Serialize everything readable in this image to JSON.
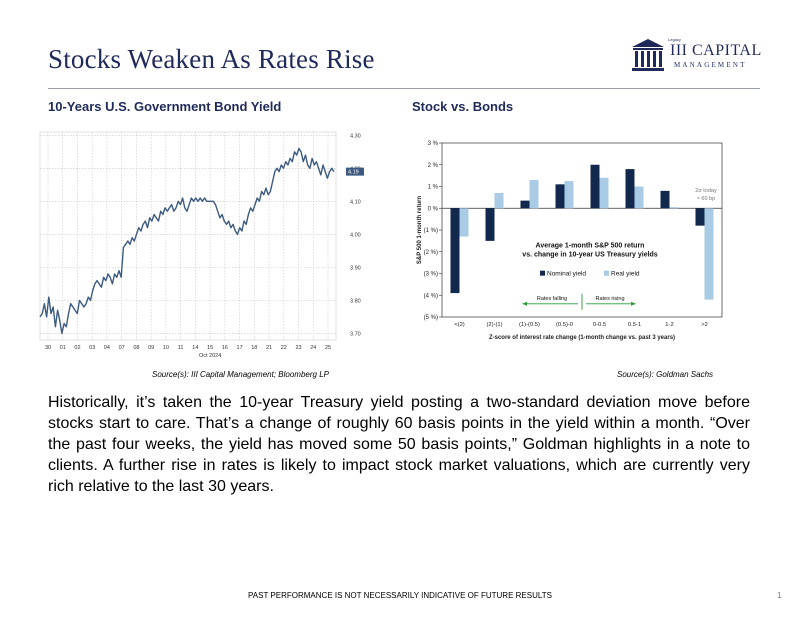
{
  "page": {
    "title": "Stocks Weaken As Rates Rise",
    "body": "Historically, it’s taken the 10-year Treasury yield posting a two-standard deviation move before stocks start to care. That’s a change of roughly 60 basis points in the yield within a month. “Over the past four weeks, the yield has moved some 50 basis points,” Goldman highlights in a note to clients. A further rise in rates is likely to impact stock market valuations, which are currently very rich relative to the last 30 years.",
    "footer": "PAST PERFORMANCE IS NOT NECESSARILY INDICATIVE OF FUTURE RESULTS",
    "page_number": "1"
  },
  "logo": {
    "small": "Legacy",
    "main": "III CAPITAL",
    "sub": "MANAGEMENT",
    "icon": "columns-building-icon",
    "color": "#1f2a5a"
  },
  "chart_data": [
    {
      "type": "line",
      "title": "10-Years U.S. Government Bond Yield",
      "source": "Source(s): III Capital Management; Bloomberg LP",
      "x_ticks": [
        "30",
        "01",
        "02",
        "03",
        "04",
        "07",
        "08",
        "09",
        "10",
        "11",
        "14",
        "15",
        "16",
        "17",
        "18",
        "21",
        "22",
        "23",
        "24",
        "25"
      ],
      "x_sublabel": "Oct 2024",
      "y_ticks": [
        "3.70",
        "3.80",
        "3.90",
        "4.00",
        "4.10",
        "4.20",
        "4.30"
      ],
      "ylim": [
        3.68,
        4.31
      ],
      "last_value": "4.19",
      "line_color": "#3d5a80",
      "grid": true,
      "series": [
        {
          "values": [
            3.75,
            3.76,
            3.79,
            3.75,
            3.81,
            3.76,
            3.78,
            3.72,
            3.77,
            3.74,
            3.7,
            3.73,
            3.72,
            3.76,
            3.79,
            3.78,
            3.77,
            3.76,
            3.8,
            3.79,
            3.78,
            3.79,
            3.81,
            3.8,
            3.83,
            3.85,
            3.86,
            3.85,
            3.84,
            3.87,
            3.86,
            3.88,
            3.87,
            3.85,
            3.88,
            3.87,
            3.89,
            3.87,
            3.96,
            3.97,
            3.98,
            3.97,
            3.99,
            3.98,
            4.0,
            4.02,
            4.01,
            4.03,
            4.04,
            4.02,
            4.05,
            4.04,
            4.06,
            4.05,
            4.04,
            4.07,
            4.06,
            4.08,
            4.07,
            4.08,
            4.09,
            4.07,
            4.08,
            4.1,
            4.09,
            4.11,
            4.08,
            4.07,
            4.09,
            4.11,
            4.1,
            4.11,
            4.1,
            4.11,
            4.1,
            4.11,
            4.1,
            4.1,
            4.1,
            4.1,
            4.09,
            4.07,
            4.05,
            4.06,
            4.04,
            4.03,
            4.04,
            4.02,
            4.03,
            4.01,
            4.0,
            4.02,
            4.01,
            4.04,
            4.03,
            4.06,
            4.08,
            4.07,
            4.09,
            4.11,
            4.1,
            4.13,
            4.12,
            4.14,
            4.12,
            4.13,
            4.16,
            4.19,
            4.2,
            4.19,
            4.21,
            4.2,
            4.22,
            4.21,
            4.23,
            4.22,
            4.25,
            4.24,
            4.26,
            4.25,
            4.22,
            4.24,
            4.21,
            4.2,
            4.23,
            4.21,
            4.22,
            4.2,
            4.18,
            4.21,
            4.19,
            4.17,
            4.19,
            4.2,
            4.19
          ]
        }
      ]
    },
    {
      "type": "bar",
      "title": "Stock vs. Bonds",
      "source": "Source(s): Goldman Sachs",
      "inner_title": [
        "Average 1-month S&P 500 return",
        "vs. change in 10-year US Treasury yields"
      ],
      "ylabel": "S&P 500 1-month return",
      "xlabel": "Z-score of interest rate change (1-month change vs. past 3 years)",
      "categories": [
        "<(2)",
        "(2)-(1)",
        "(1)-(0.5)",
        "(0.5)-0",
        "0-0.5",
        "0.5-1",
        "1-2",
        ">2"
      ],
      "y_ticks": [
        "3 %",
        "2 %",
        "1 %",
        "0 %",
        "(1 %)",
        "(2 %)",
        "(3 %)",
        "(4 %)",
        "(5 %)"
      ],
      "ylim": [
        -5,
        3
      ],
      "series": [
        {
          "name": "Nominal yield",
          "color": "#12284c",
          "values": [
            -3.9,
            -1.5,
            0.35,
            1.1,
            2.0,
            1.8,
            0.8,
            -0.8
          ]
        },
        {
          "name": "Real yield",
          "color": "#a9cbe6",
          "values": [
            -1.3,
            0.7,
            1.3,
            1.25,
            1.4,
            1.0,
            0.05,
            -4.2
          ]
        }
      ],
      "annotation": [
        "2σ today",
        "≈ 60 bp"
      ],
      "rates_falling": "Rates falling",
      "rates_rising": "Rates rising",
      "arrow_color": "#2a9a3a",
      "grid": false,
      "legend_position": "center-right"
    }
  ]
}
